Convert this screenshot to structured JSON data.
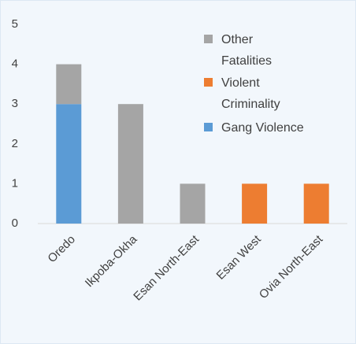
{
  "chart_data": {
    "type": "bar",
    "stacked": true,
    "categories": [
      "Oredo",
      "Ikpoba-Okha",
      "Esan North-East",
      "Esan West",
      "Ovia North-East"
    ],
    "series": [
      {
        "name": "Gang Violence",
        "color": "#5b9bd5",
        "values": [
          3,
          0,
          0,
          0,
          0
        ]
      },
      {
        "name": "Violent Criminality",
        "color": "#ed7d31",
        "values": [
          0,
          0,
          0,
          1,
          1
        ]
      },
      {
        "name": "Other Fatalities",
        "color": "#a5a5a5",
        "values": [
          1,
          3,
          1,
          0,
          0
        ]
      }
    ],
    "ylim": [
      0,
      5
    ],
    "yticks": [
      0,
      1,
      2,
      3,
      4,
      5
    ],
    "grid": false,
    "legend": "top-right"
  }
}
